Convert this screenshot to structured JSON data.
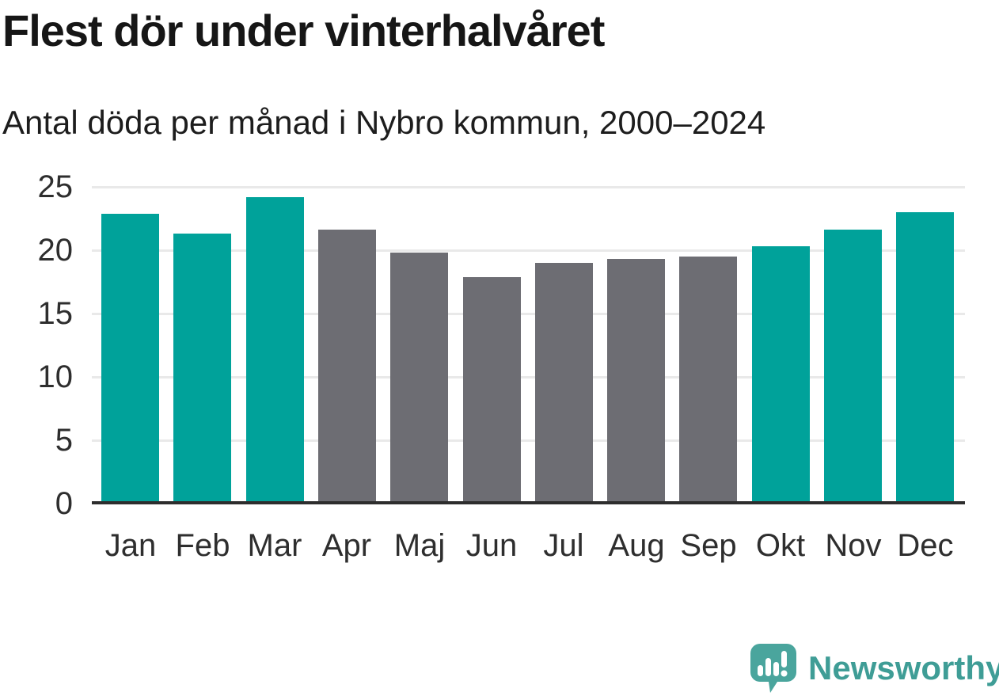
{
  "header": {
    "title": "Flest dör under vinterhalvåret",
    "subtitle": "Antal döda per månad i Nybro kommun, 2000–2024"
  },
  "chart_data": {
    "type": "bar",
    "title": "Flest dör under vinterhalvåret",
    "subtitle": "Antal döda per månad i Nybro kommun, 2000–2024",
    "categories": [
      "Jan",
      "Feb",
      "Mar",
      "Apr",
      "Maj",
      "Jun",
      "Jul",
      "Aug",
      "Sep",
      "Okt",
      "Nov",
      "Dec"
    ],
    "values": [
      22.9,
      21.3,
      24.2,
      21.6,
      19.8,
      17.9,
      19.0,
      19.3,
      19.5,
      20.3,
      21.6,
      23.0
    ],
    "bar_colors": [
      "#00a29a",
      "#00a29a",
      "#00a29a",
      "#6d6d73",
      "#6d6d73",
      "#6d6d73",
      "#6d6d73",
      "#6d6d73",
      "#6d6d73",
      "#00a29a",
      "#00a29a",
      "#00a29a"
    ],
    "highlight_color": "#00a29a",
    "muted_color": "#6d6d73",
    "gridline_color": "#e9e9e9",
    "axis_color": "#2d2d2d",
    "xlabel": "",
    "ylabel": "",
    "yticks": [
      0,
      5,
      10,
      15,
      20,
      25
    ],
    "ylim": [
      0,
      25
    ],
    "grid": true,
    "legend": "none"
  },
  "footer": {
    "brand": "Newsworthy",
    "brand_color": "#3f9d96",
    "logo_icon": "newsworthy-speech-bubble-chart-icon",
    "logo_color": "#4aa59d"
  }
}
